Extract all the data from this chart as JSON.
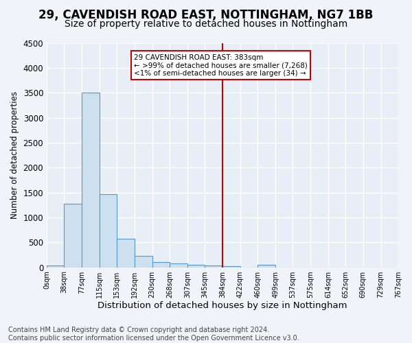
{
  "title1": "29, CAVENDISH ROAD EAST, NOTTINGHAM, NG7 1BB",
  "title2": "Size of property relative to detached houses in Nottingham",
  "xlabel": "Distribution of detached houses by size in Nottingham",
  "ylabel": "Number of detached properties",
  "bin_edges": [
    0,
    38,
    77,
    115,
    153,
    192,
    230,
    268,
    307,
    345,
    384,
    422,
    460,
    499,
    537,
    575,
    614,
    652,
    690,
    729,
    767
  ],
  "bar_heights": [
    30,
    1270,
    3500,
    1470,
    570,
    230,
    110,
    80,
    50,
    30,
    20,
    0,
    50,
    0,
    0,
    0,
    0,
    0,
    0,
    0
  ],
  "bar_color": "#cce0f0",
  "bar_edge_color": "#5599cc",
  "vline_x": 383,
  "vline_color": "#cc0000",
  "annotation_text": "29 CAVENDISH ROAD EAST: 383sqm\n← >99% of detached houses are smaller (7,268)\n<1% of semi-detached houses are larger (34) →",
  "annotation_box_color": "#ffffff",
  "annotation_box_edge": "#cc0000",
  "ylim": [
    0,
    4500
  ],
  "yticks": [
    0,
    500,
    1000,
    1500,
    2000,
    2500,
    3000,
    3500,
    4000,
    4500
  ],
  "tick_labels": [
    "0sqm",
    "38sqm",
    "77sqm",
    "115sqm",
    "153sqm",
    "192sqm",
    "230sqm",
    "268sqm",
    "307sqm",
    "345sqm",
    "384sqm",
    "422sqm",
    "460sqm",
    "499sqm",
    "537sqm",
    "575sqm",
    "614sqm",
    "652sqm",
    "690sqm",
    "729sqm",
    "767sqm"
  ],
  "footnote": "Contains HM Land Registry data © Crown copyright and database right 2024.\nContains public sector information licensed under the Open Government Licence v3.0.",
  "bg_color": "#f0f4f8",
  "plot_bg_color": "#e8eef5",
  "grid_color": "#ffffff",
  "title1_fontsize": 12,
  "title2_fontsize": 10,
  "xlabel_fontsize": 9.5,
  "ylabel_fontsize": 8.5,
  "footnote_fontsize": 7
}
